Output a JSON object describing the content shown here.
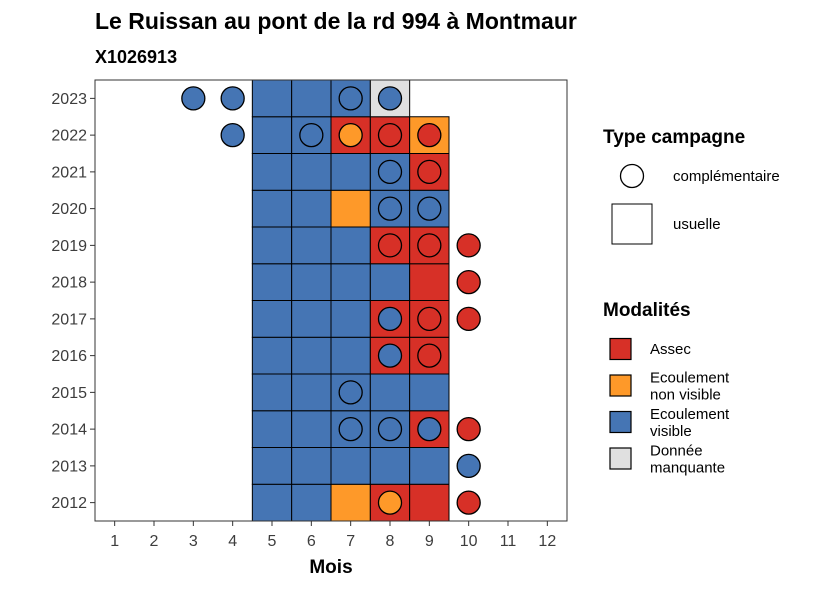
{
  "chart_data": {
    "type": "heatmap",
    "title": "Le Ruissan au pont de la rd 994 à Montmaur",
    "subtitle": "X1026913",
    "xlabel": "Mois",
    "ylabel": "",
    "x_ticks": [
      "1",
      "2",
      "3",
      "4",
      "5",
      "6",
      "7",
      "8",
      "9",
      "10",
      "11",
      "12"
    ],
    "y_ticks": [
      "2012",
      "2013",
      "2014",
      "2015",
      "2016",
      "2017",
      "2018",
      "2019",
      "2020",
      "2021",
      "2022",
      "2023"
    ],
    "grid": false,
    "legend_placement": "right",
    "colors": {
      "Assec": "#d73027",
      "Ecoulement non visible": "#fe9929",
      "Ecoulement visible": "#4575b4",
      "Donnée manquante": "#e0e0e0"
    },
    "legend_type": {
      "title": "Type campagne",
      "entries": [
        {
          "label": "complémentaire",
          "shape": "circle"
        },
        {
          "label": "usuelle",
          "shape": "square"
        }
      ]
    },
    "legend_modalites": {
      "title": "Modalités",
      "entries": [
        {
          "key": "Assec",
          "lines": [
            "Assec"
          ]
        },
        {
          "key": "Ecoulement non visible",
          "lines": [
            "Ecoulement",
            "non visible"
          ]
        },
        {
          "key": "Ecoulement visible",
          "lines": [
            "Ecoulement",
            "visible"
          ]
        },
        {
          "key": "Donnée manquante",
          "lines": [
            "Donnée",
            "manquante"
          ]
        }
      ]
    },
    "usuelle": [
      {
        "year": 2012,
        "month": 5,
        "modalite": "Ecoulement visible"
      },
      {
        "year": 2012,
        "month": 6,
        "modalite": "Ecoulement visible"
      },
      {
        "year": 2012,
        "month": 7,
        "modalite": "Ecoulement non visible"
      },
      {
        "year": 2012,
        "month": 8,
        "modalite": "Assec"
      },
      {
        "year": 2012,
        "month": 9,
        "modalite": "Assec"
      },
      {
        "year": 2013,
        "month": 5,
        "modalite": "Ecoulement visible"
      },
      {
        "year": 2013,
        "month": 6,
        "modalite": "Ecoulement visible"
      },
      {
        "year": 2013,
        "month": 7,
        "modalite": "Ecoulement visible"
      },
      {
        "year": 2013,
        "month": 8,
        "modalite": "Ecoulement visible"
      },
      {
        "year": 2013,
        "month": 9,
        "modalite": "Ecoulement visible"
      },
      {
        "year": 2014,
        "month": 5,
        "modalite": "Ecoulement visible"
      },
      {
        "year": 2014,
        "month": 6,
        "modalite": "Ecoulement visible"
      },
      {
        "year": 2014,
        "month": 7,
        "modalite": "Ecoulement visible"
      },
      {
        "year": 2014,
        "month": 8,
        "modalite": "Ecoulement visible"
      },
      {
        "year": 2014,
        "month": 9,
        "modalite": "Assec"
      },
      {
        "year": 2015,
        "month": 5,
        "modalite": "Ecoulement visible"
      },
      {
        "year": 2015,
        "month": 6,
        "modalite": "Ecoulement visible"
      },
      {
        "year": 2015,
        "month": 7,
        "modalite": "Ecoulement visible"
      },
      {
        "year": 2015,
        "month": 8,
        "modalite": "Ecoulement visible"
      },
      {
        "year": 2015,
        "month": 9,
        "modalite": "Ecoulement visible"
      },
      {
        "year": 2016,
        "month": 5,
        "modalite": "Ecoulement visible"
      },
      {
        "year": 2016,
        "month": 6,
        "modalite": "Ecoulement visible"
      },
      {
        "year": 2016,
        "month": 7,
        "modalite": "Ecoulement visible"
      },
      {
        "year": 2016,
        "month": 8,
        "modalite": "Assec"
      },
      {
        "year": 2016,
        "month": 9,
        "modalite": "Assec"
      },
      {
        "year": 2017,
        "month": 5,
        "modalite": "Ecoulement visible"
      },
      {
        "year": 2017,
        "month": 6,
        "modalite": "Ecoulement visible"
      },
      {
        "year": 2017,
        "month": 7,
        "modalite": "Ecoulement visible"
      },
      {
        "year": 2017,
        "month": 8,
        "modalite": "Assec"
      },
      {
        "year": 2017,
        "month": 9,
        "modalite": "Assec"
      },
      {
        "year": 2018,
        "month": 5,
        "modalite": "Ecoulement visible"
      },
      {
        "year": 2018,
        "month": 6,
        "modalite": "Ecoulement visible"
      },
      {
        "year": 2018,
        "month": 7,
        "modalite": "Ecoulement visible"
      },
      {
        "year": 2018,
        "month": 8,
        "modalite": "Ecoulement visible"
      },
      {
        "year": 2018,
        "month": 9,
        "modalite": "Assec"
      },
      {
        "year": 2019,
        "month": 5,
        "modalite": "Ecoulement visible"
      },
      {
        "year": 2019,
        "month": 6,
        "modalite": "Ecoulement visible"
      },
      {
        "year": 2019,
        "month": 7,
        "modalite": "Ecoulement visible"
      },
      {
        "year": 2019,
        "month": 8,
        "modalite": "Assec"
      },
      {
        "year": 2019,
        "month": 9,
        "modalite": "Assec"
      },
      {
        "year": 2020,
        "month": 5,
        "modalite": "Ecoulement visible"
      },
      {
        "year": 2020,
        "month": 6,
        "modalite": "Ecoulement visible"
      },
      {
        "year": 2020,
        "month": 7,
        "modalite": "Ecoulement non visible"
      },
      {
        "year": 2020,
        "month": 8,
        "modalite": "Ecoulement visible"
      },
      {
        "year": 2020,
        "month": 9,
        "modalite": "Ecoulement visible"
      },
      {
        "year": 2021,
        "month": 5,
        "modalite": "Ecoulement visible"
      },
      {
        "year": 2021,
        "month": 6,
        "modalite": "Ecoulement visible"
      },
      {
        "year": 2021,
        "month": 7,
        "modalite": "Ecoulement visible"
      },
      {
        "year": 2021,
        "month": 8,
        "modalite": "Ecoulement visible"
      },
      {
        "year": 2021,
        "month": 9,
        "modalite": "Assec"
      },
      {
        "year": 2022,
        "month": 5,
        "modalite": "Ecoulement visible"
      },
      {
        "year": 2022,
        "month": 6,
        "modalite": "Ecoulement visible"
      },
      {
        "year": 2022,
        "month": 7,
        "modalite": "Assec"
      },
      {
        "year": 2022,
        "month": 8,
        "modalite": "Assec"
      },
      {
        "year": 2022,
        "month": 9,
        "modalite": "Ecoulement non visible"
      },
      {
        "year": 2023,
        "month": 5,
        "modalite": "Ecoulement visible"
      },
      {
        "year": 2023,
        "month": 6,
        "modalite": "Ecoulement visible"
      },
      {
        "year": 2023,
        "month": 7,
        "modalite": "Ecoulement visible"
      },
      {
        "year": 2023,
        "month": 8,
        "modalite": "Donnée manquante"
      }
    ],
    "complementaire": [
      {
        "year": 2012,
        "month": 8,
        "modalite": "Ecoulement non visible"
      },
      {
        "year": 2012,
        "month": 10,
        "modalite": "Assec"
      },
      {
        "year": 2013,
        "month": 10,
        "modalite": "Ecoulement visible"
      },
      {
        "year": 2014,
        "month": 7,
        "modalite": "Ecoulement visible"
      },
      {
        "year": 2014,
        "month": 8,
        "modalite": "Ecoulement visible"
      },
      {
        "year": 2014,
        "month": 9,
        "modalite": "Ecoulement visible"
      },
      {
        "year": 2014,
        "month": 10,
        "modalite": "Assec"
      },
      {
        "year": 2015,
        "month": 7,
        "modalite": "Ecoulement visible"
      },
      {
        "year": 2016,
        "month": 8,
        "modalite": "Ecoulement visible"
      },
      {
        "year": 2016,
        "month": 9,
        "modalite": "Assec"
      },
      {
        "year": 2017,
        "month": 8,
        "modalite": "Ecoulement visible"
      },
      {
        "year": 2017,
        "month": 9,
        "modalite": "Assec"
      },
      {
        "year": 2017,
        "month": 10,
        "modalite": "Assec"
      },
      {
        "year": 2018,
        "month": 10,
        "modalite": "Assec"
      },
      {
        "year": 2019,
        "month": 8,
        "modalite": "Assec"
      },
      {
        "year": 2019,
        "month": 9,
        "modalite": "Assec"
      },
      {
        "year": 2019,
        "month": 10,
        "modalite": "Assec"
      },
      {
        "year": 2020,
        "month": 8,
        "modalite": "Ecoulement visible"
      },
      {
        "year": 2020,
        "month": 9,
        "modalite": "Ecoulement visible"
      },
      {
        "year": 2021,
        "month": 8,
        "modalite": "Ecoulement visible"
      },
      {
        "year": 2021,
        "month": 9,
        "modalite": "Assec"
      },
      {
        "year": 2022,
        "month": 4,
        "modalite": "Ecoulement visible"
      },
      {
        "year": 2022,
        "month": 6,
        "modalite": "Ecoulement visible"
      },
      {
        "year": 2022,
        "month": 7,
        "modalite": "Ecoulement non visible"
      },
      {
        "year": 2022,
        "month": 8,
        "modalite": "Assec"
      },
      {
        "year": 2022,
        "month": 9,
        "modalite": "Assec"
      },
      {
        "year": 2023,
        "month": 3,
        "modalite": "Ecoulement visible"
      },
      {
        "year": 2023,
        "month": 4,
        "modalite": "Ecoulement visible"
      },
      {
        "year": 2023,
        "month": 7,
        "modalite": "Ecoulement visible"
      },
      {
        "year": 2023,
        "month": 8,
        "modalite": "Ecoulement visible"
      }
    ]
  }
}
